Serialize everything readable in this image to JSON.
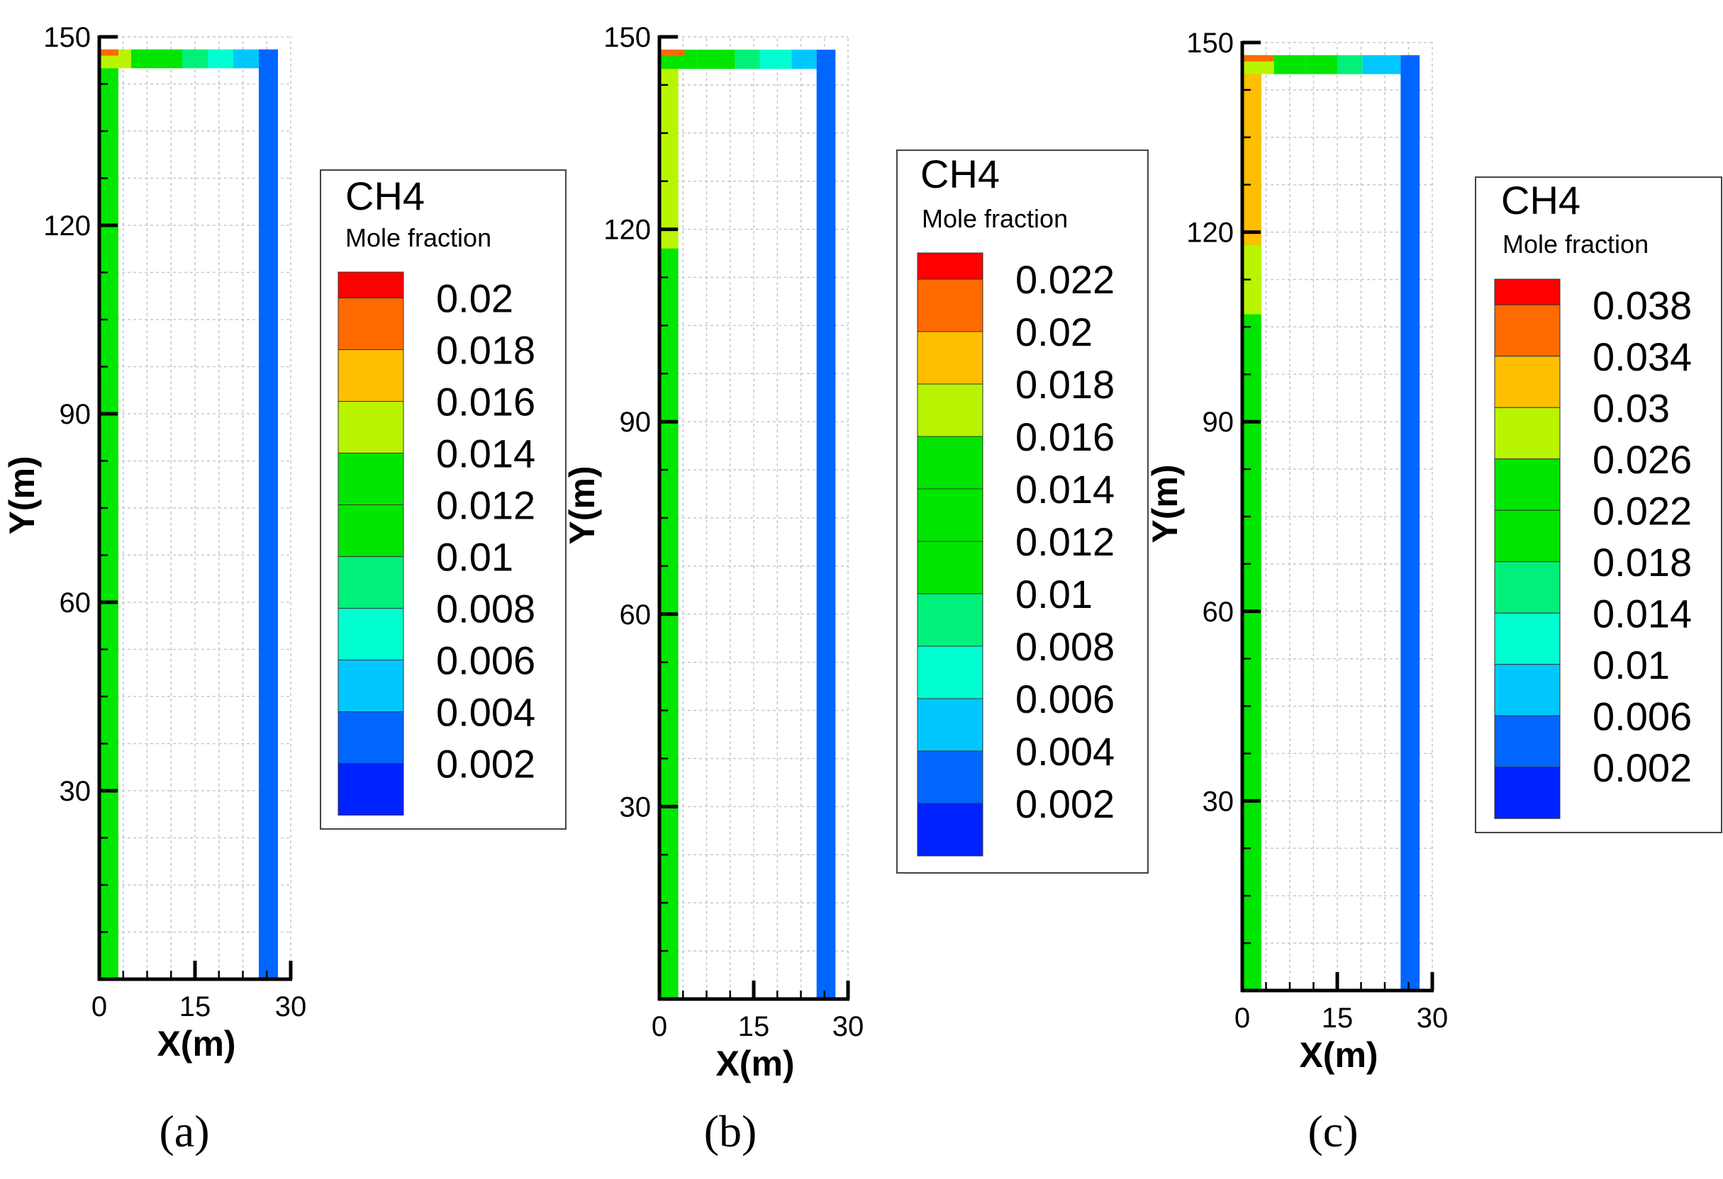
{
  "palette": {
    "red": "#ff0000",
    "orange": "#ff6a00",
    "amber": "#ffbf00",
    "yellowgreen": "#b9f500",
    "green": "#00e600",
    "mint": "#00f07a",
    "cyan": "#00ffd0",
    "skyblue": "#00c8ff",
    "blue": "#0066ff",
    "darkblue": "#0022ff"
  },
  "chart_data": [
    {
      "type": "heatmap",
      "title": "",
      "panel_label": "(a)",
      "xlabel": "X(m)",
      "ylabel": "Y(m)",
      "xlim": [
        0,
        30
      ],
      "ylim": [
        0,
        150
      ],
      "xticks": [
        "0",
        "15",
        "30"
      ],
      "yticks": [
        "30",
        "60",
        "90",
        "120",
        "150"
      ],
      "variable": "CH4",
      "legend_title": "CH4",
      "legend_subtitle": "Mole fraction",
      "levels": [
        "0.02",
        "0.018",
        "0.016",
        "0.014",
        "0.012",
        "0.01",
        "0.008",
        "0.006",
        "0.004",
        "0.002"
      ],
      "level_colors": [
        "red",
        "orange",
        "amber",
        "yellowgreen",
        "green",
        "green",
        "mint",
        "cyan",
        "skyblue",
        "blue"
      ],
      "regions": [
        {
          "x": [
            0,
            3
          ],
          "y": [
            0,
            148
          ],
          "level": "0.012"
        },
        {
          "x": [
            0,
            5
          ],
          "y": [
            145,
            148
          ],
          "level": "0.014"
        },
        {
          "x": [
            5,
            13
          ],
          "y": [
            145,
            148
          ],
          "level": "0.01"
        },
        {
          "x": [
            13,
            17
          ],
          "y": [
            145,
            148
          ],
          "level": "0.008"
        },
        {
          "x": [
            17,
            21
          ],
          "y": [
            145,
            148
          ],
          "level": "0.006"
        },
        {
          "x": [
            21,
            25
          ],
          "y": [
            145,
            148
          ],
          "level": "0.004"
        },
        {
          "x": [
            25,
            28
          ],
          "y": [
            0,
            148
          ],
          "level": "0.002"
        },
        {
          "x": [
            0,
            3
          ],
          "y": [
            147,
            148
          ],
          "level": "0.018"
        }
      ]
    },
    {
      "type": "heatmap",
      "title": "",
      "panel_label": "(b)",
      "xlabel": "X(m)",
      "ylabel": "Y(m)",
      "xlim": [
        0,
        30
      ],
      "ylim": [
        0,
        150
      ],
      "xticks": [
        "0",
        "15",
        "30"
      ],
      "yticks": [
        "30",
        "60",
        "90",
        "120",
        "150"
      ],
      "variable": "CH4",
      "legend_title": "CH4",
      "legend_subtitle": "Mole fraction",
      "levels": [
        "0.022",
        "0.02",
        "0.018",
        "0.016",
        "0.014",
        "0.012",
        "0.01",
        "0.008",
        "0.006",
        "0.004",
        "0.002"
      ],
      "level_colors": [
        "red",
        "orange",
        "amber",
        "yellowgreen",
        "green",
        "green",
        "green",
        "mint",
        "cyan",
        "skyblue",
        "blue"
      ],
      "regions": [
        {
          "x": [
            0,
            3
          ],
          "y": [
            0,
            148
          ],
          "level": "0.014"
        },
        {
          "x": [
            0,
            3
          ],
          "y": [
            117,
            146
          ],
          "level": "0.016"
        },
        {
          "x": [
            0,
            6
          ],
          "y": [
            145,
            148
          ],
          "level": "0.014"
        },
        {
          "x": [
            6,
            12
          ],
          "y": [
            145,
            148
          ],
          "level": "0.01"
        },
        {
          "x": [
            12,
            16
          ],
          "y": [
            145,
            148
          ],
          "level": "0.008"
        },
        {
          "x": [
            16,
            21
          ],
          "y": [
            145,
            148
          ],
          "level": "0.006"
        },
        {
          "x": [
            21,
            25
          ],
          "y": [
            145,
            148
          ],
          "level": "0.004"
        },
        {
          "x": [
            25,
            28
          ],
          "y": [
            0,
            148
          ],
          "level": "0.002"
        },
        {
          "x": [
            0,
            4
          ],
          "y": [
            147,
            148
          ],
          "level": "0.02"
        }
      ]
    },
    {
      "type": "heatmap",
      "title": "",
      "panel_label": "(c)",
      "xlabel": "X(m)",
      "ylabel": "Y(m)",
      "xlim": [
        0,
        30
      ],
      "ylim": [
        0,
        150
      ],
      "xticks": [
        "0",
        "15",
        "30"
      ],
      "yticks": [
        "30",
        "60",
        "90",
        "120",
        "150"
      ],
      "variable": "CH4",
      "legend_title": "CH4",
      "legend_subtitle": "Mole fraction",
      "levels": [
        "0.038",
        "0.034",
        "0.03",
        "0.026",
        "0.022",
        "0.018",
        "0.014",
        "0.01",
        "0.006",
        "0.002"
      ],
      "level_colors": [
        "red",
        "orange",
        "amber",
        "yellowgreen",
        "green",
        "green",
        "mint",
        "cyan",
        "skyblue",
        "blue"
      ],
      "regions": [
        {
          "x": [
            0,
            3
          ],
          "y": [
            0,
            148
          ],
          "level": "0.022"
        },
        {
          "x": [
            0,
            3
          ],
          "y": [
            107,
            118
          ],
          "level": "0.026"
        },
        {
          "x": [
            0,
            3
          ],
          "y": [
            118,
            146
          ],
          "level": "0.03"
        },
        {
          "x": [
            0,
            5
          ],
          "y": [
            145,
            148
          ],
          "level": "0.026"
        },
        {
          "x": [
            5,
            10
          ],
          "y": [
            145,
            148
          ],
          "level": "0.022"
        },
        {
          "x": [
            10,
            15
          ],
          "y": [
            145,
            148
          ],
          "level": "0.018"
        },
        {
          "x": [
            15,
            19
          ],
          "y": [
            145,
            148
          ],
          "level": "0.014"
        },
        {
          "x": [
            19,
            25
          ],
          "y": [
            145,
            148
          ],
          "level": "0.006"
        },
        {
          "x": [
            25,
            28
          ],
          "y": [
            0,
            148
          ],
          "level": "0.002"
        },
        {
          "x": [
            0,
            5
          ],
          "y": [
            147,
            148
          ],
          "level": "0.034"
        }
      ]
    }
  ]
}
